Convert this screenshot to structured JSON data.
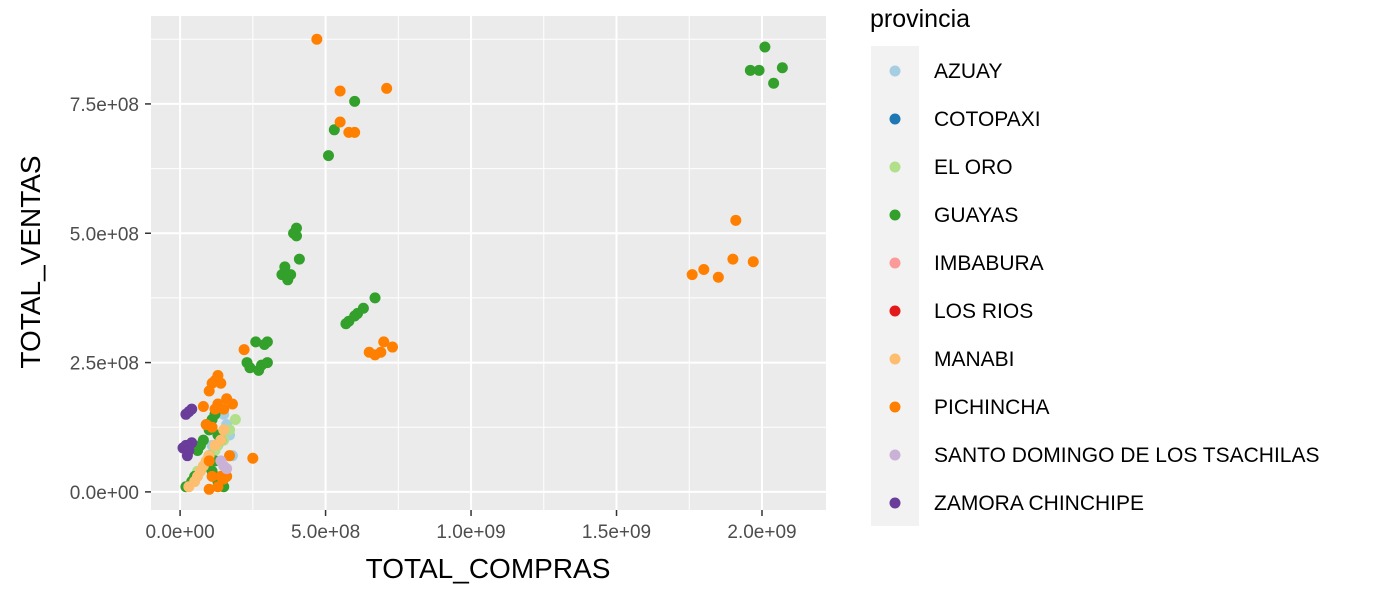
{
  "chart_data": {
    "type": "scatter",
    "xlabel": "TOTAL_COMPRAS",
    "ylabel": "TOTAL_VENTAS",
    "xlim": [
      -100000000,
      2220000000
    ],
    "ylim": [
      -35000000,
      920000000
    ],
    "x_ticks": [
      0,
      500000000,
      1000000000,
      1500000000,
      2000000000
    ],
    "x_tick_labels": [
      "0.0e+00",
      "5.0e+08",
      "1.0e+09",
      "1.5e+09",
      "2.0e+09"
    ],
    "y_ticks": [
      0,
      250000000,
      500000000,
      750000000
    ],
    "y_tick_labels": [
      "0.0e+00",
      "2.5e+08",
      "5.0e+08",
      "7.5e+08"
    ],
    "grid": true,
    "legend": {
      "title": "provincia",
      "position": "right"
    },
    "series": [
      {
        "name": "AZUAY",
        "color": "#a6cee3",
        "x": [
          150000000,
          160000000,
          180000000,
          170000000,
          110000000
        ],
        "y": [
          150000000,
          130000000,
          70000000,
          110000000,
          90000000
        ]
      },
      {
        "name": "COTOPAXI",
        "color": "#1f78b4",
        "x": [],
        "y": []
      },
      {
        "name": "EL ORO",
        "color": "#b2df8a",
        "x": [
          190000000,
          170000000,
          150000000,
          130000000,
          120000000,
          100000000,
          80000000,
          60000000,
          40000000,
          160000000
        ],
        "y": [
          140000000,
          120000000,
          100000000,
          90000000,
          80000000,
          60000000,
          50000000,
          40000000,
          20000000,
          30000000
        ]
      },
      {
        "name": "GUAYAS",
        "color": "#33a02c",
        "x": [
          2010000000,
          2070000000,
          1960000000,
          1990000000,
          2040000000,
          600000000,
          530000000,
          510000000,
          400000000,
          390000000,
          400000000,
          410000000,
          350000000,
          360000000,
          380000000,
          370000000,
          670000000,
          630000000,
          610000000,
          600000000,
          580000000,
          570000000,
          300000000,
          290000000,
          260000000,
          230000000,
          240000000,
          270000000,
          300000000,
          280000000,
          120000000,
          110000000,
          90000000,
          100000000,
          80000000,
          130000000,
          140000000,
          70000000,
          60000000,
          100000000,
          120000000,
          90000000,
          110000000,
          50000000,
          40000000,
          20000000,
          130000000,
          150000000
        ],
        "y": [
          860000000,
          820000000,
          815000000,
          815000000,
          790000000,
          755000000,
          700000000,
          650000000,
          510000000,
          500000000,
          495000000,
          450000000,
          420000000,
          435000000,
          420000000,
          410000000,
          375000000,
          355000000,
          345000000,
          340000000,
          330000000,
          325000000,
          290000000,
          285000000,
          290000000,
          250000000,
          240000000,
          235000000,
          250000000,
          245000000,
          150000000,
          140000000,
          130000000,
          120000000,
          100000000,
          110000000,
          100000000,
          90000000,
          80000000,
          70000000,
          60000000,
          50000000,
          40000000,
          30000000,
          20000000,
          10000000,
          20000000,
          10000000
        ]
      },
      {
        "name": "IMBABURA",
        "color": "#fb9a99",
        "x": [],
        "y": []
      },
      {
        "name": "LOS RIOS",
        "color": "#e31a1c",
        "x": [],
        "y": []
      },
      {
        "name": "MANABI",
        "color": "#fdbf6f",
        "x": [
          150000000,
          140000000,
          120000000,
          100000000,
          90000000,
          80000000,
          70000000,
          60000000,
          50000000,
          30000000
        ],
        "y": [
          120000000,
          100000000,
          90000000,
          70000000,
          60000000,
          50000000,
          40000000,
          30000000,
          20000000,
          10000000
        ]
      },
      {
        "name": "PICHINCHA",
        "color": "#ff7f00",
        "x": [
          470000000,
          710000000,
          550000000,
          550000000,
          580000000,
          600000000,
          1910000000,
          1760000000,
          1800000000,
          1850000000,
          1900000000,
          1970000000,
          700000000,
          730000000,
          690000000,
          650000000,
          670000000,
          220000000,
          130000000,
          120000000,
          110000000,
          140000000,
          100000000,
          180000000,
          160000000,
          130000000,
          150000000,
          120000000,
          80000000,
          110000000,
          90000000,
          250000000,
          100000000,
          150000000,
          160000000,
          110000000,
          140000000,
          170000000,
          130000000,
          100000000
        ],
        "y": [
          875000000,
          780000000,
          775000000,
          715000000,
          695000000,
          695000000,
          525000000,
          420000000,
          430000000,
          415000000,
          450000000,
          445000000,
          290000000,
          280000000,
          270000000,
          270000000,
          265000000,
          275000000,
          225000000,
          215000000,
          210000000,
          210000000,
          195000000,
          170000000,
          180000000,
          170000000,
          160000000,
          160000000,
          165000000,
          125000000,
          130000000,
          65000000,
          60000000,
          25000000,
          30000000,
          30000000,
          30000000,
          70000000,
          10000000,
          5000000
        ]
      },
      {
        "name": "SANTO DOMINGO DE LOS TSACHILAS",
        "color": "#cab2d6",
        "x": [
          150000000,
          160000000,
          140000000
        ],
        "y": [
          50000000,
          45000000,
          60000000
        ]
      },
      {
        "name": "ZAMORA CHINCHIPE",
        "color": "#6a3d9a",
        "x": [
          20000000,
          30000000,
          40000000,
          10000000,
          20000000,
          30000000,
          40000000,
          25000000
        ],
        "y": [
          150000000,
          155000000,
          160000000,
          85000000,
          90000000,
          80000000,
          95000000,
          70000000
        ]
      }
    ]
  }
}
